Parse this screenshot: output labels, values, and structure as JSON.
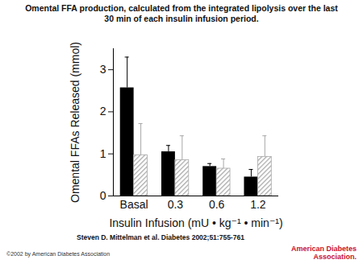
{
  "chart_data": {
    "type": "bar",
    "title": "Omental FFA production, calculated from the integrated lipolysis over the last 30 min of each insulin infusion period.",
    "x_label": "Insulin Infusion (mU • kg⁻¹ • min⁻¹)",
    "y_label": "Omental FFAs Released (mmol)",
    "categories": [
      "Basal",
      "0.3",
      "0.6",
      "1.2"
    ],
    "series": [
      {
        "color": "#000000",
        "values": [
          2.57,
          1.05,
          0.7,
          0.45
        ],
        "errors": [
          0.73,
          0.15,
          0.07,
          0.18
        ]
      },
      {
        "color": "#a8a8a8",
        "values": [
          0.97,
          0.85,
          0.65,
          0.93
        ],
        "errors": [
          0.75,
          0.58,
          0.23,
          0.5
        ]
      }
    ],
    "ylim": [
      0,
      3.5
    ],
    "yticks": [
      0,
      1,
      2,
      3
    ],
    "source": "Steven D. Mittelman et al. Diabetes 2002;51:755-761",
    "copyright": "©2002 by American Diabetes Association",
    "publisher": "American Diabetes Association."
  }
}
